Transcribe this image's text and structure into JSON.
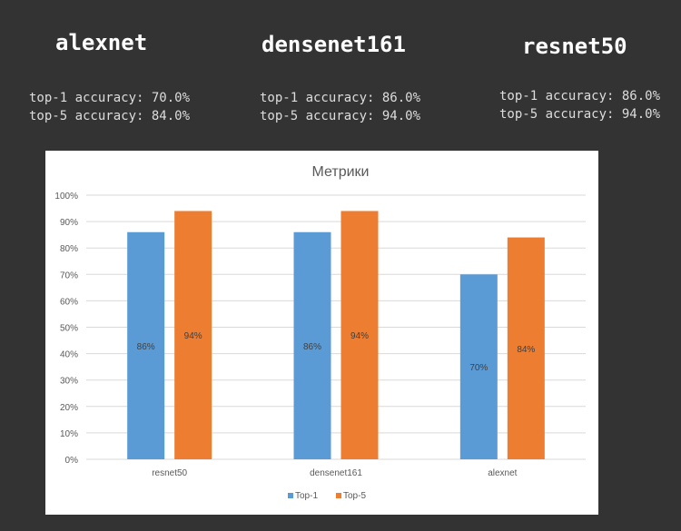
{
  "models": [
    {
      "name": "alexnet",
      "top1": "top-1 accuracy: 70.0%",
      "top5": "top-5 accuracy: 84.0%"
    },
    {
      "name": "densenet161",
      "top1": "top-1 accuracy: 86.0%",
      "top5": "top-5 accuracy: 94.0%"
    },
    {
      "name": "resnet50",
      "top1": "top-1 accuracy: 86.0%",
      "top5": "top-5 accuracy: 94.0%"
    }
  ],
  "chart_data": {
    "type": "bar",
    "title": "Метрики",
    "categories": [
      "resnet50",
      "densenet161",
      "alexnet"
    ],
    "series": [
      {
        "name": "Top-1",
        "values": [
          86,
          86,
          70
        ],
        "labels": [
          "86%",
          "86%",
          "70%"
        ],
        "color": "#5b9bd5"
      },
      {
        "name": "Top-5",
        "values": [
          94,
          94,
          84
        ],
        "labels": [
          "94%",
          "94%",
          "84%"
        ],
        "color": "#ed7d31"
      }
    ],
    "ylim": [
      0,
      100
    ],
    "yticks": [
      "0%",
      "10%",
      "20%",
      "30%",
      "40%",
      "50%",
      "60%",
      "70%",
      "80%",
      "90%",
      "100%"
    ],
    "grid": true,
    "legend": "bottom"
  }
}
